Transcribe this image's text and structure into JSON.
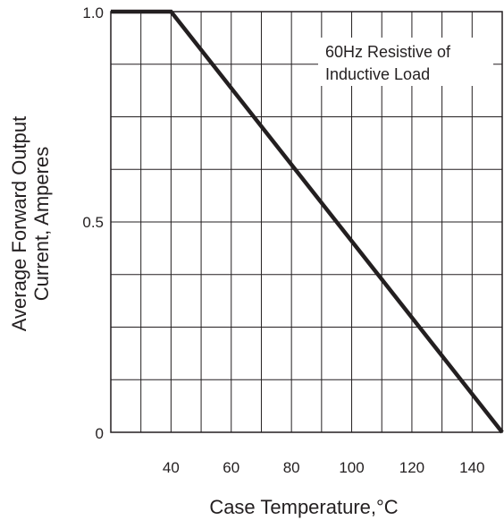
{
  "chart_data": {
    "type": "line",
    "title": "",
    "xlabel": "Case Temperature,°C",
    "ylabel_lines": [
      "Average Forward Output",
      "Current, Amperes"
    ],
    "xlim": [
      20,
      150
    ],
    "ylim": [
      0,
      1.0
    ],
    "x_ticks": [
      40,
      60,
      80,
      100,
      120,
      140
    ],
    "x_tick_labels": [
      "40",
      "60",
      "80",
      "100",
      "120",
      "140"
    ],
    "y_ticks": [
      0,
      0.5,
      1.0
    ],
    "y_tick_labels": [
      "0",
      "0.5",
      "1.0"
    ],
    "x_grid_step": 10,
    "y_grid_step": 0.125,
    "grid": true,
    "series": [
      {
        "x": [
          20,
          40,
          150
        ],
        "y": [
          1.0,
          1.0,
          0
        ]
      }
    ],
    "annotation_lines": [
      "60Hz Resistive of",
      "Inductive Load"
    ],
    "colors": {
      "line": "#231f20",
      "grid": "#231f20",
      "background": "#ffffff"
    }
  }
}
